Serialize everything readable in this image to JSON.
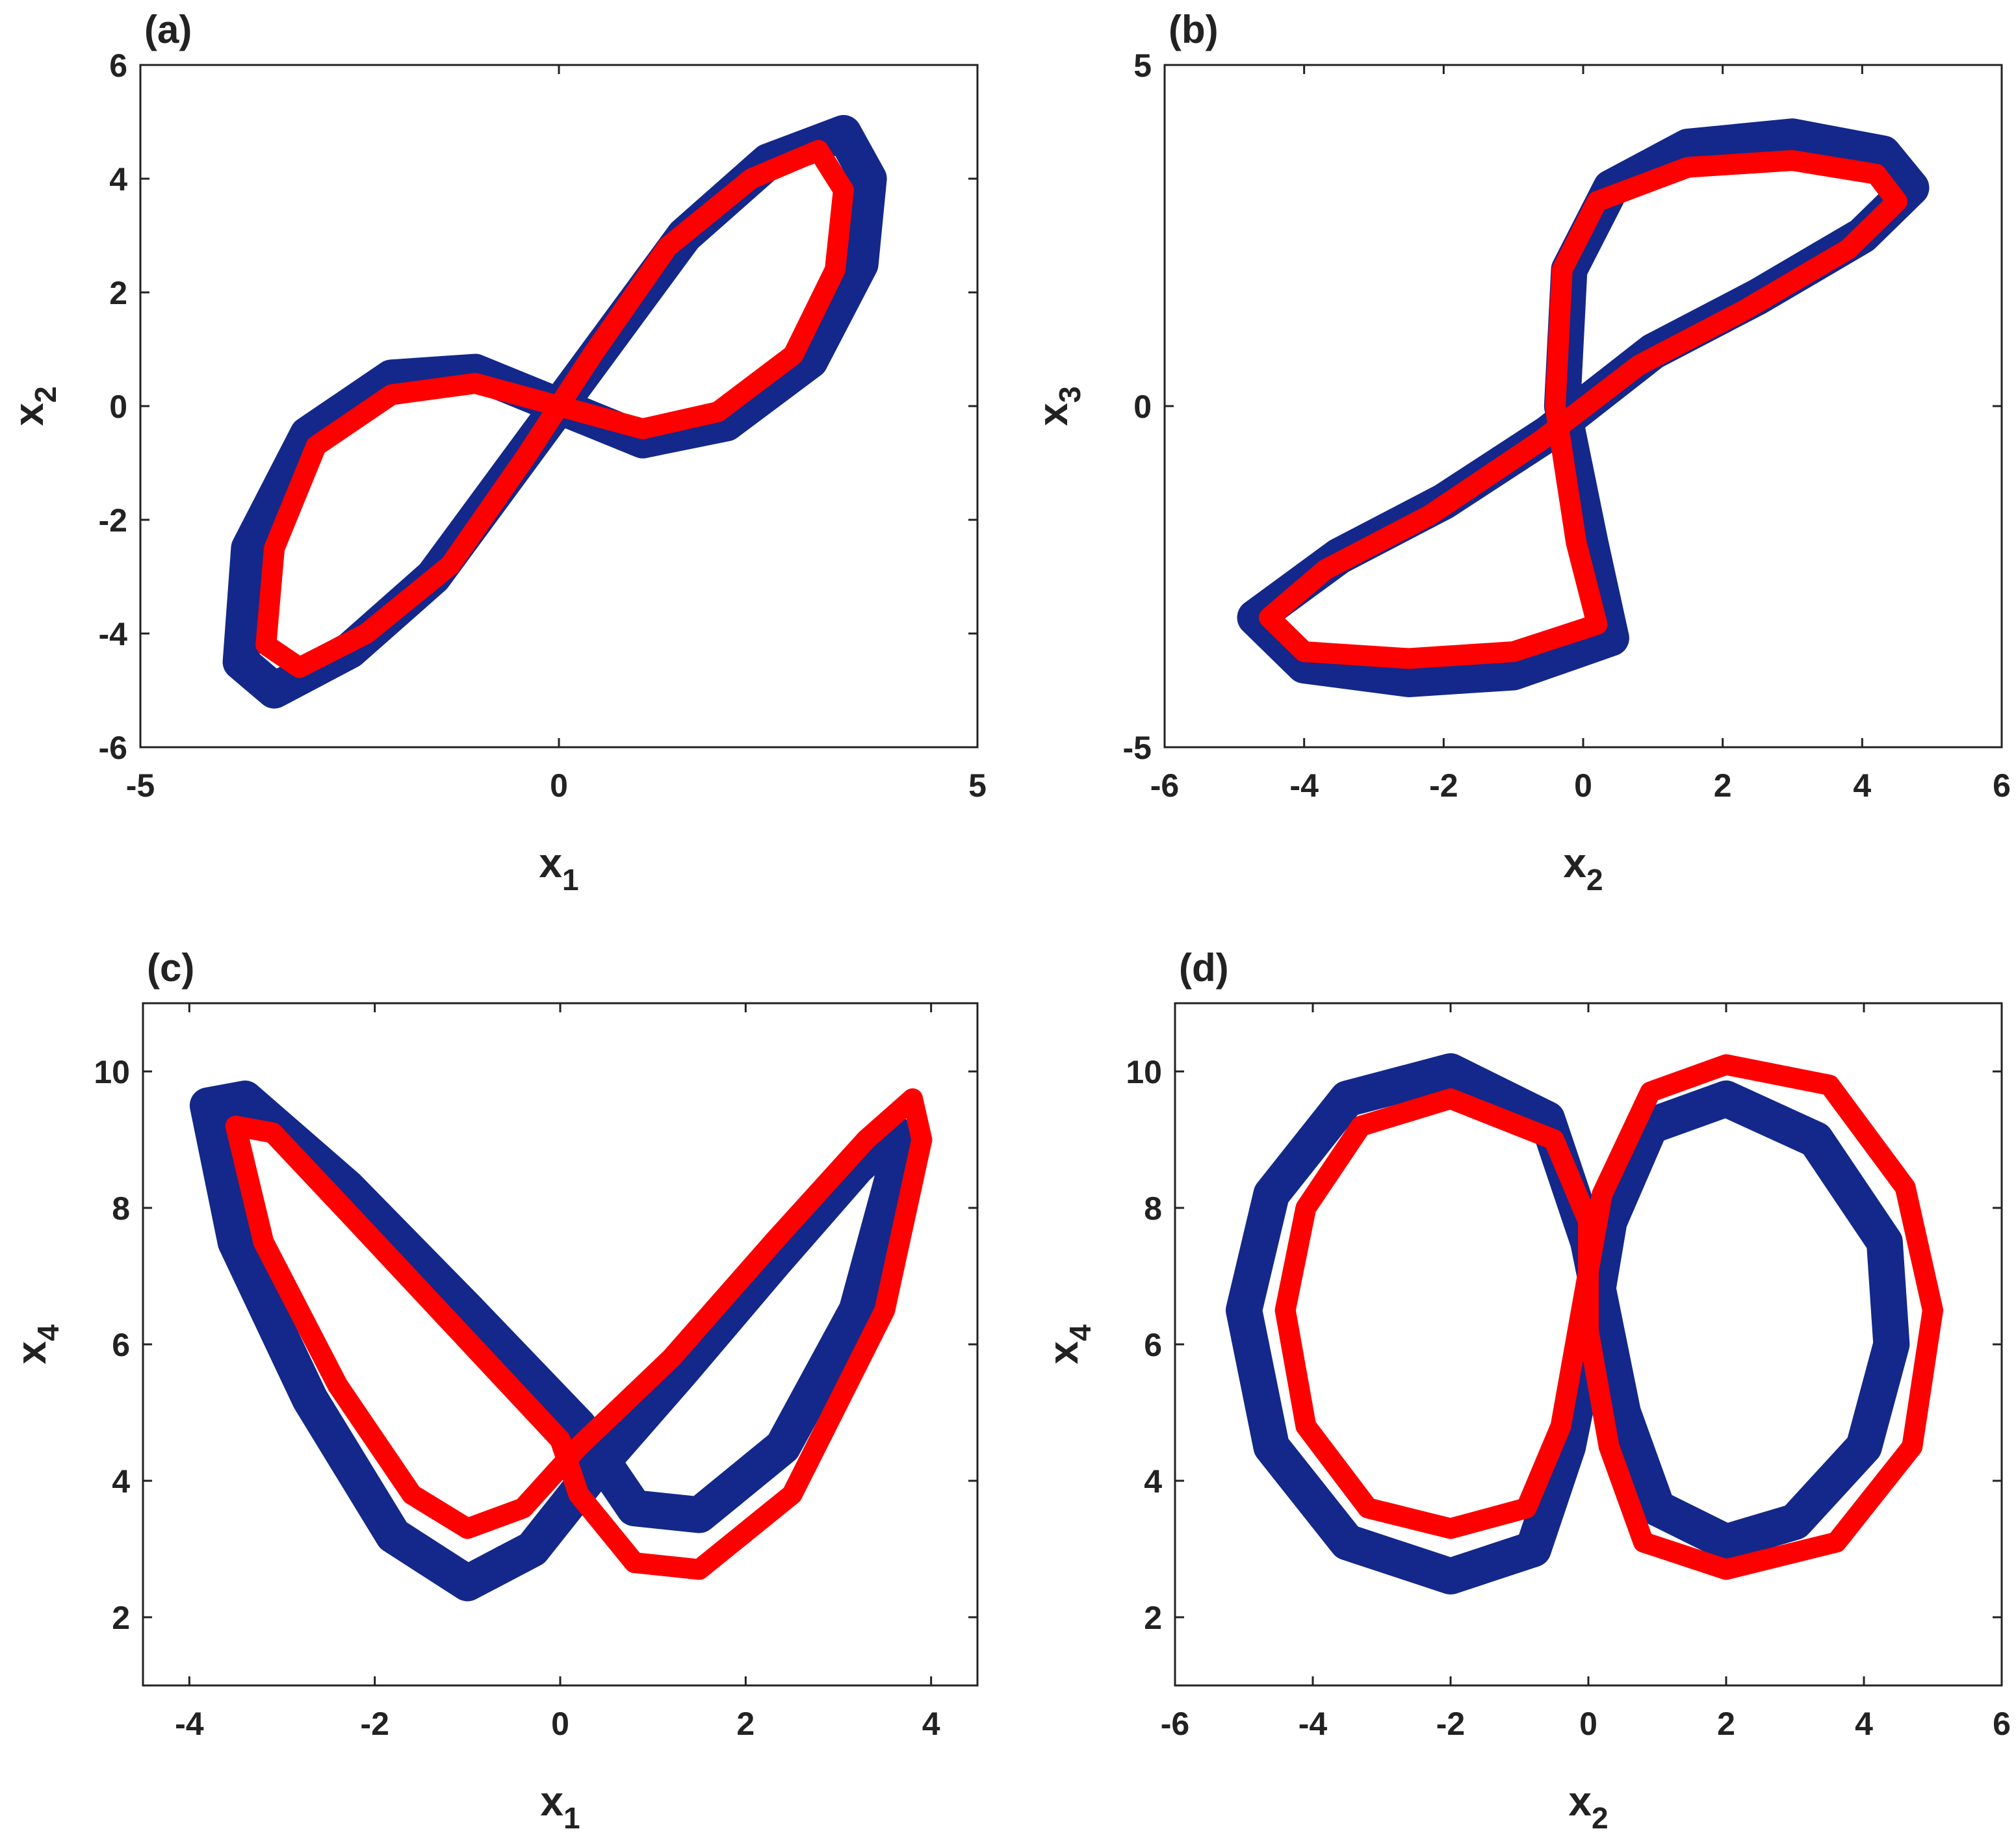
{
  "chart_data": [
    {
      "type": "line",
      "title": "(a)",
      "xlabel": {
        "text": "x",
        "subscript": "1"
      },
      "ylabel": {
        "text": "x",
        "subscript": "2"
      },
      "xlim": [
        -5,
        5
      ],
      "xticks": [
        -5,
        0,
        5
      ],
      "ylim": [
        -6,
        6
      ],
      "yticks": [
        -6,
        -4,
        -2,
        0,
        2,
        4,
        6
      ],
      "series": [
        {
          "color": "#13288a",
          "x": [
            0,
            -1,
            -2,
            -3,
            -3.7,
            -3.8,
            -3.4,
            -2.5,
            -1.5,
            -0.5,
            0.5,
            1.5,
            2.5,
            3.4,
            3.7,
            3.6,
            3,
            2,
            1,
            0
          ],
          "values": [
            0,
            0.6,
            0.5,
            -0.5,
            -2.5,
            -4.5,
            -5.0,
            -4.3,
            -3,
            -1,
            1,
            3,
            4.3,
            4.8,
            4.0,
            2.5,
            0.8,
            -0.3,
            -0.6,
            0
          ]
        },
        {
          "color": "#ff0000",
          "x": [
            0,
            -1,
            -2,
            -2.9,
            -3.4,
            -3.5,
            -3.1,
            -2.3,
            -1.3,
            -0.4,
            0.4,
            1.3,
            2.3,
            3.1,
            3.4,
            3.3,
            2.8,
            1.9,
            1,
            0
          ],
          "values": [
            0,
            0.4,
            0.2,
            -0.7,
            -2.5,
            -4.2,
            -4.6,
            -4.0,
            -2.8,
            -0.9,
            0.9,
            2.8,
            4.0,
            4.5,
            3.8,
            2.4,
            0.9,
            -0.1,
            -0.4,
            0
          ]
        }
      ]
    },
    {
      "type": "line",
      "title": "(b)",
      "xlabel": {
        "text": "x",
        "subscript": "2"
      },
      "ylabel": {
        "text": "x",
        "subscript": "3"
      },
      "xlim": [
        -6,
        6
      ],
      "xticks": [
        -6,
        -4,
        -2,
        0,
        2,
        4,
        6
      ],
      "ylim": [
        -5,
        5
      ],
      "yticks": [
        -5,
        0,
        5
      ],
      "series": [
        {
          "color": "#13288a",
          "x": [
            0.4,
            0.1,
            -0.3,
            -0.2,
            0.4,
            1.5,
            3,
            4.3,
            4.7,
            4,
            2.5,
            1,
            -0.5,
            -2,
            -3.5,
            -4.7,
            -4,
            -2.5,
            -1,
            0.4
          ],
          "values": [
            -3.4,
            -2.0,
            0,
            2.0,
            3.2,
            3.8,
            3.95,
            3.7,
            3.2,
            2.5,
            1.6,
            0.8,
            -0.4,
            -1.4,
            -2.2,
            -3.1,
            -3.8,
            -4.0,
            -3.9,
            -3.4
          ]
        },
        {
          "color": "#ff0000",
          "x": [
            0.2,
            -0.1,
            -0.4,
            -0.3,
            0.2,
            1.5,
            3,
            4.2,
            4.5,
            3.8,
            2.3,
            0.8,
            -0.6,
            -2.2,
            -3.7,
            -4.5,
            -4,
            -2.5,
            -1,
            0.2
          ],
          "values": [
            -3.2,
            -2,
            0,
            2,
            3.0,
            3.5,
            3.6,
            3.4,
            3.0,
            2.3,
            1.4,
            0.6,
            -0.5,
            -1.6,
            -2.4,
            -3.1,
            -3.6,
            -3.7,
            -3.6,
            -3.2
          ]
        }
      ]
    },
    {
      "type": "line",
      "title": "(c)",
      "xlabel": {
        "text": "x",
        "subscript": "1"
      },
      "ylabel": {
        "text": "x",
        "subscript": "4"
      },
      "xlim": [
        -4.5,
        4.5
      ],
      "xticks": [
        -4,
        -2,
        0,
        2,
        4
      ],
      "ylim": [
        1,
        11
      ],
      "yticks": [
        2,
        4,
        6,
        8,
        10
      ],
      "series": [
        {
          "color": "#13288a",
          "x": [
            0.2,
            -1,
            -2.3,
            -3.4,
            -3.8,
            -3.5,
            -2.7,
            -1.8,
            -1,
            -0.3,
            0.4,
            1.3,
            2.3,
            3.2,
            3.6,
            3.6,
            3.2,
            2.4,
            1.5,
            0.8,
            0.2
          ],
          "values": [
            4.8,
            6.5,
            8.3,
            9.6,
            9.5,
            7.5,
            5.2,
            3.2,
            2.5,
            3,
            4.2,
            5.6,
            7.2,
            8.6,
            9.1,
            8.5,
            6.5,
            4.5,
            3.5,
            3.6,
            4.8
          ]
        },
        {
          "color": "#ff0000",
          "x": [
            0,
            -1.1,
            -2.2,
            -3.1,
            -3.5,
            -3.2,
            -2.4,
            -1.6,
            -1,
            -0.4,
            0.2,
            1.2,
            2.3,
            3.3,
            3.8,
            3.9,
            3.5,
            2.5,
            1.5,
            0.8,
            0.2,
            0
          ],
          "values": [
            4.6,
            6.2,
            7.8,
            9.1,
            9.2,
            7.5,
            5.4,
            3.8,
            3.3,
            3.6,
            4.5,
            5.8,
            7.5,
            9,
            9.6,
            9,
            6.5,
            3.8,
            2.7,
            2.8,
            3.8,
            4.6
          ]
        }
      ]
    },
    {
      "type": "line",
      "title": "(d)",
      "xlabel": {
        "text": "x",
        "subscript": "2"
      },
      "ylabel": {
        "text": "x",
        "subscript": "4"
      },
      "xlim": [
        -6,
        6
      ],
      "xticks": [
        -6,
        -4,
        -2,
        0,
        2,
        4,
        6
      ],
      "ylim": [
        1,
        11
      ],
      "yticks": [
        2,
        4,
        6,
        8,
        10
      ],
      "series": [
        {
          "color": "#13288a",
          "x": [
            0,
            -0.6,
            -2,
            -3.5,
            -4.6,
            -5,
            -4.6,
            -3.5,
            -2,
            -0.8,
            -0.3,
            0,
            0.3,
            0.9,
            2,
            3.3,
            4.3,
            4.4,
            4,
            3,
            2,
            1,
            0.5,
            0
          ],
          "values": [
            7.5,
            9.3,
            10,
            9.6,
            8.2,
            6.5,
            4.5,
            3.1,
            2.6,
            3,
            4.5,
            6,
            7.8,
            9.2,
            9.6,
            9,
            7.5,
            6,
            4.5,
            3.4,
            3.1,
            3.6,
            5,
            7.5
          ]
        },
        {
          "color": "#ff0000",
          "x": [
            0,
            -0.5,
            -2,
            -3.3,
            -4.1,
            -4.4,
            -4.1,
            -3.2,
            -2,
            -0.9,
            -0.4,
            -0.1,
            0.2,
            0.9,
            2,
            3.5,
            4.6,
            5,
            4.7,
            3.6,
            2,
            0.8,
            0.3,
            0,
            0
          ],
          "values": [
            7.8,
            9,
            9.6,
            9.2,
            8,
            6.5,
            4.8,
            3.6,
            3.3,
            3.6,
            4.8,
            6.5,
            8.2,
            9.7,
            10.1,
            9.8,
            8.3,
            6.5,
            4.5,
            3.1,
            2.7,
            3.1,
            4.5,
            6.2,
            7.8
          ]
        }
      ]
    }
  ]
}
